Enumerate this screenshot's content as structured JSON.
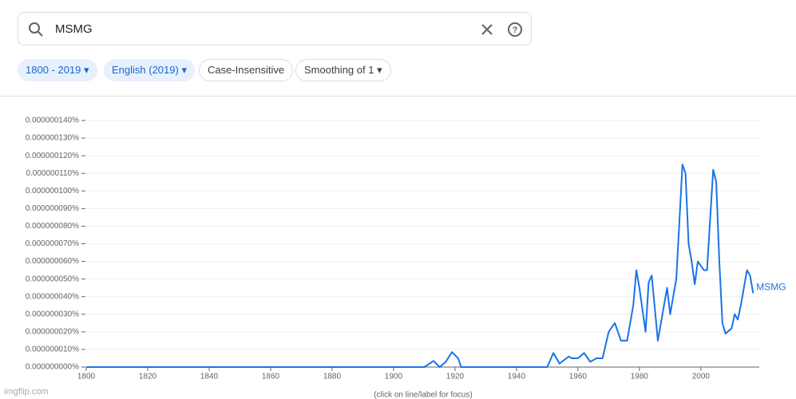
{
  "search": {
    "query": "MSMG"
  },
  "filters": [
    "1800 - 2019",
    "English (2019)",
    "Case-Insensitive",
    "Smoothing of 1"
  ],
  "chart_data": {
    "type": "line",
    "x": [
      1800,
      1910,
      1913,
      1915,
      1917,
      1919,
      1921,
      1922,
      1950,
      1952,
      1954,
      1957,
      1958,
      1960,
      1962,
      1964,
      1966,
      1968,
      1970,
      1972,
      1974,
      1976,
      1978,
      1979,
      1980,
      1982,
      1983,
      1984,
      1986,
      1987,
      1989,
      1990,
      1992,
      1994,
      1995,
      1996,
      1997,
      1998,
      1999,
      2001,
      2002,
      2004,
      2005,
      2006,
      2007,
      2008,
      2010,
      2011,
      2012,
      2013,
      2015,
      2016,
      2017
    ],
    "series": [
      {
        "name": "MSMG",
        "color": "#1a73e8",
        "values": [
          0,
          0,
          3.5e-09,
          0,
          3e-09,
          8.5e-09,
          5e-09,
          0,
          0,
          8e-09,
          2e-09,
          6e-09,
          5e-09,
          5e-09,
          8e-09,
          3e-09,
          5e-09,
          5e-09,
          2e-08,
          2.5e-08,
          1.5e-08,
          1.5e-08,
          3.5e-08,
          5.5e-08,
          4.5e-08,
          2e-08,
          4.8e-08,
          5.2e-08,
          1.5e-08,
          2.5e-08,
          4.5e-08,
          3e-08,
          5e-08,
          1.15e-07,
          1.1e-07,
          7e-08,
          6e-08,
          4.7e-08,
          6e-08,
          5.5e-08,
          5.5e-08,
          1.12e-07,
          1.05e-07,
          6e-08,
          2.5e-08,
          1.9e-08,
          2.2e-08,
          3e-08,
          2.7e-08,
          3.5e-08,
          5.5e-08,
          5.2e-08,
          4.2e-08
        ]
      }
    ],
    "xlim": [
      1800,
      2019
    ],
    "xticks": [
      1800,
      1820,
      1840,
      1860,
      1880,
      1900,
      1920,
      1940,
      1960,
      1980,
      2000
    ],
    "ylim": [
      0,
      1.4e-07
    ],
    "yticks": [
      {
        "value": 0,
        "label": "0.000000000%"
      },
      {
        "value": 1e-08,
        "label": "0.000000010%"
      },
      {
        "value": 2e-08,
        "label": "0.000000020%"
      },
      {
        "value": 3e-08,
        "label": "0.000000030%"
      },
      {
        "value": 4e-08,
        "label": "0.000000040%"
      },
      {
        "value": 5e-08,
        "label": "0.000000050%"
      },
      {
        "value": 6e-08,
        "label": "0.000000060%"
      },
      {
        "value": 7e-08,
        "label": "0.000000070%"
      },
      {
        "value": 8e-08,
        "label": "0.000000080%"
      },
      {
        "value": 9e-08,
        "label": "0.000000090%"
      },
      {
        "value": 1e-07,
        "label": "0.000000100%"
      },
      {
        "value": 1.1e-07,
        "label": "0.000000110%"
      },
      {
        "value": 1.2e-07,
        "label": "0.000000120%"
      },
      {
        "value": 1.3e-07,
        "label": "0.000000130%"
      },
      {
        "value": 1.4e-07,
        "label": "0.000000140%"
      }
    ],
    "grid": true,
    "note": "(click on line/label for focus)"
  },
  "watermark": "imgflip.com"
}
